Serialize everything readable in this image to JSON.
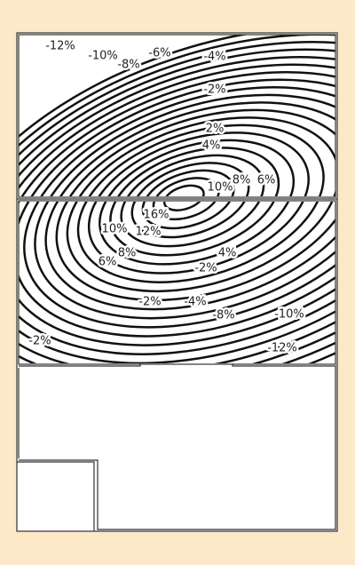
{
  "labels": [
    {
      "text": "-12%"
    },
    {
      "text": "-10%"
    },
    {
      "text": "-8%"
    },
    {
      "text": "-6%"
    },
    {
      "text": "-4%"
    },
    {
      "text": "-2%"
    },
    {
      "text": "2%"
    },
    {
      "text": "4%"
    },
    {
      "text": "10%"
    },
    {
      "text": "8%"
    },
    {
      "text": "6%"
    },
    {
      "text": "16%"
    },
    {
      "text": "10%"
    },
    {
      "text": "12%"
    },
    {
      "text": "8%"
    },
    {
      "text": "6%"
    },
    {
      "text": "4%"
    },
    {
      "text": "-2%"
    },
    {
      "text": "-2%"
    },
    {
      "text": "-4%"
    },
    {
      "text": "-8%"
    },
    {
      "text": "-10%"
    },
    {
      "text": "-2%"
    },
    {
      "text": "-12%"
    }
  ]
}
